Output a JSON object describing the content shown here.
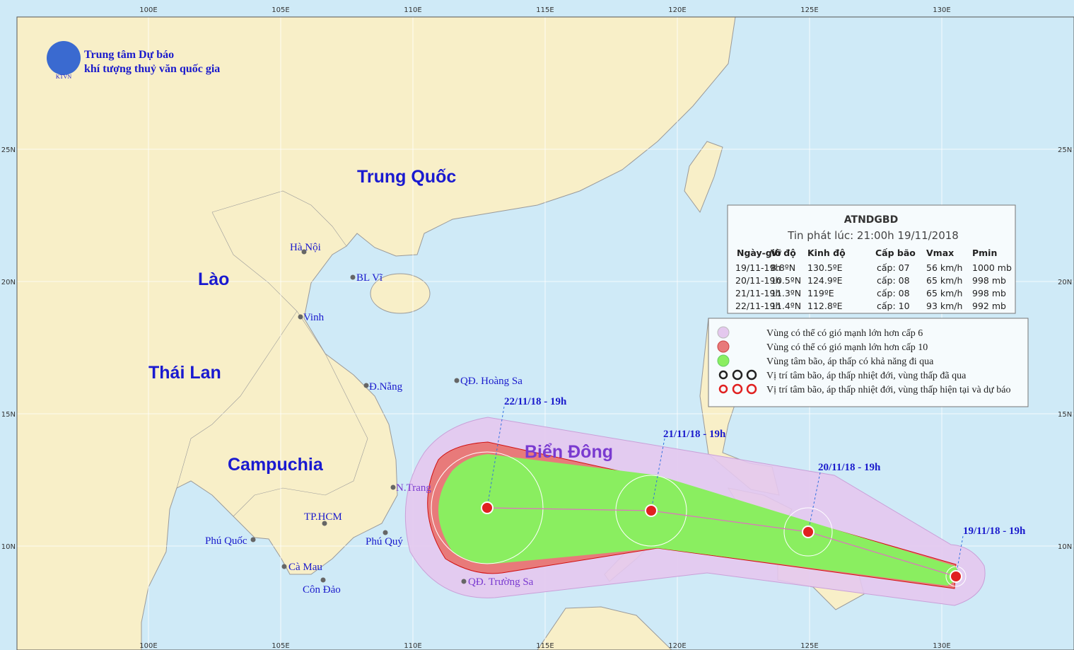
{
  "header": {
    "logo": "KTVN",
    "org_line1": "Trung tâm Dự báo",
    "org_line2": "khí tượng thuỷ văn quốc gia"
  },
  "longitude_labels": [
    "100E",
    "105E",
    "110E",
    "115E",
    "120E",
    "125E",
    "130E"
  ],
  "latitude_labels": [
    "25N",
    "20N",
    "15N",
    "10N"
  ],
  "regions": [
    "Trung Quốc",
    "Lào",
    "Thái Lan",
    "Campuchia",
    "Biển Đông"
  ],
  "places": [
    "Hà Nội",
    "BL Vĩ",
    "Vinh",
    "Đ.Nẵng",
    "QĐ. Hoàng Sa",
    "N.Trang",
    "TP.HCM",
    "Phú Quốc",
    "Phú Quý",
    "Cà Mau",
    "Côn Đảo",
    "QĐ. Trường Sa"
  ],
  "track_labels": [
    "22/11/18 - 19h",
    "21/11/18 - 19h",
    "20/11/18 - 19h",
    "19/11/18 - 19h"
  ],
  "bulletin": {
    "title": "ATNDGBD",
    "issued": "Tin phát lúc: 21:00h 19/11/2018",
    "columns": [
      "Ngày-giờ",
      "Vĩ độ",
      "Kinh độ",
      "Cấp bão",
      "Vmax",
      "Pmin"
    ],
    "rows": [
      [
        "19/11-19h",
        "8.8ºN",
        "130.5ºE",
        "cấp: 07",
        "56 km/h",
        "1000 mb"
      ],
      [
        "20/11-19h",
        "10.5ºN",
        "124.9ºE",
        "cấp: 08",
        "65 km/h",
        "998 mb"
      ],
      [
        "21/11-19h",
        "11.3ºN",
        "119ºE",
        "cấp: 08",
        "65 km/h",
        "998 mb"
      ],
      [
        "22/11-19h",
        "11.4ºN",
        "112.8ºE",
        "cấp: 10",
        "93 km/h",
        "992 mb"
      ]
    ]
  },
  "legend": [
    "Vùng có thể có gió mạnh lớn hơn cấp 6",
    "Vùng có thể có gió mạnh lớn hơn cấp 10",
    "Vùng tâm bão, áp thấp có khả năng đi qua",
    "Vị trí tâm bão, áp thấp nhiệt đới, vùng thấp đã qua",
    "Vị trí tâm bão, áp thấp nhiệt đới, vùng thấp hiện tại và dự báo"
  ]
}
